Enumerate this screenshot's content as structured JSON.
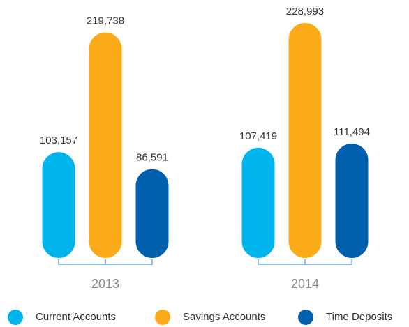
{
  "chart_data": {
    "type": "bar",
    "categories": [
      "2013",
      "2014"
    ],
    "series": [
      {
        "name": "Current Accounts",
        "color": "#00b4ec",
        "values": [
          103157,
          107419
        ],
        "value_labels": [
          "103,157",
          "107,419"
        ]
      },
      {
        "name": "Savings Accounts",
        "color": "#fbab18",
        "values": [
          219738,
          228993
        ],
        "value_labels": [
          "219,738",
          "228,993"
        ]
      },
      {
        "name": "Time Deposits",
        "color": "#0060ae",
        "values": [
          86591,
          111494
        ],
        "value_labels": [
          "86,591",
          "111,494"
        ]
      }
    ]
  }
}
